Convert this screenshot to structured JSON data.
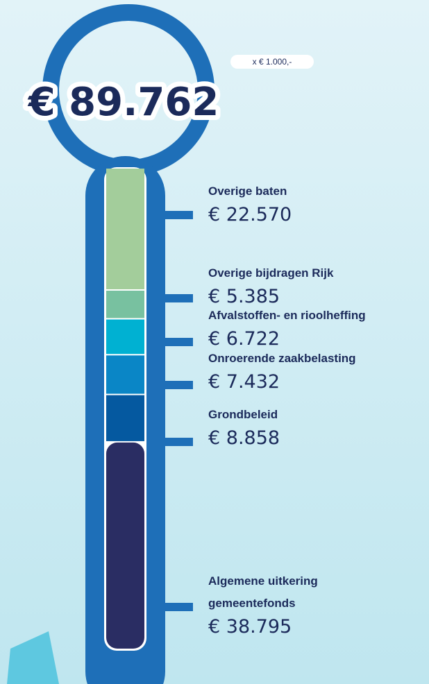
{
  "chart_data": {
    "type": "thermometer",
    "title": "€ 89.762",
    "total": 89762,
    "unit": "x € 1.000,-",
    "categories": [
      "Overige baten",
      "Overige bijdragen Rijk",
      "Afvalstoffen- en rioolheffing",
      "Onroerende zaakbelasting",
      "Grondbeleid",
      "Algemene uitkering\ngemeentefonds"
    ],
    "values": [
      22570,
      5385,
      6722,
      7432,
      8858,
      38795
    ],
    "value_labels": [
      "€ 22.570",
      "€ 5.385",
      "€ 6.722",
      "€ 7.432",
      "€ 8.858",
      "€ 38.795"
    ],
    "colors": [
      "#a3cd9b",
      "#78c1a0",
      "#00b1d2",
      "#0a86c6",
      "#0559a0",
      "#2a2d63"
    ]
  }
}
